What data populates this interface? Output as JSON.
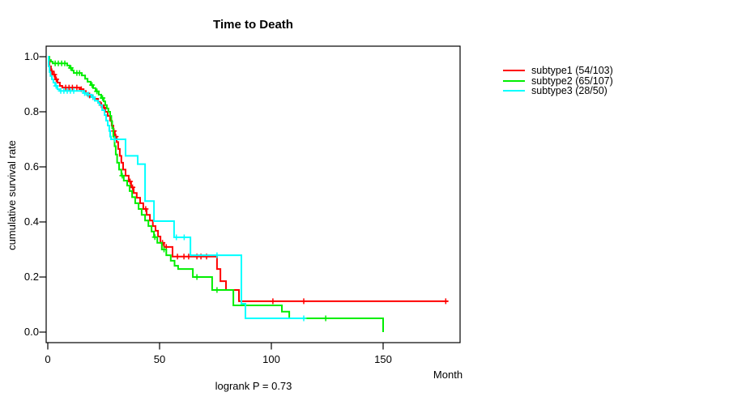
{
  "chart_data": {
    "type": "line",
    "variant": "kaplan-meier-step",
    "title": "Time to Death",
    "xlabel": "Month",
    "ylabel": "cumulative survival rate",
    "annotation": "logrank P = 0.73",
    "xlim": [
      0,
      185
    ],
    "ylim": [
      0.0,
      1.0
    ],
    "grid": false,
    "legend_position": "right-outside",
    "x_tick_values": [
      0,
      50,
      100,
      150
    ],
    "x_tick_labels": [
      "0",
      "50",
      "100",
      "150"
    ],
    "y_tick_values": [
      1.0,
      0.8,
      0.6,
      0.4,
      0.2,
      0.0
    ],
    "y_tick_labels": [
      "1.0",
      "0.8",
      "0.6",
      "0.4",
      "0.2",
      "0.0"
    ],
    "axis_color": "#000000",
    "series": [
      {
        "name": "subtype1",
        "label": "subtype1 (54/103)",
        "events": 54,
        "n": 103,
        "color": "#ff0000",
        "points": [
          [
            0,
            1.0
          ],
          [
            0.7,
            0.965
          ],
          [
            1.4,
            0.947
          ],
          [
            2.2,
            0.935
          ],
          [
            3.3,
            0.918
          ],
          [
            4.3,
            0.906
          ],
          [
            5.4,
            0.894
          ],
          [
            6.5,
            0.888
          ],
          [
            14.5,
            0.882
          ],
          [
            16,
            0.876
          ],
          [
            17,
            0.868
          ],
          [
            18,
            0.859
          ],
          [
            19.5,
            0.853
          ],
          [
            21,
            0.847
          ],
          [
            22.5,
            0.835
          ],
          [
            23.5,
            0.824
          ],
          [
            24.6,
            0.815
          ],
          [
            25.7,
            0.8
          ],
          [
            26.8,
            0.785
          ],
          [
            27.9,
            0.768
          ],
          [
            28.6,
            0.75
          ],
          [
            29.3,
            0.73
          ],
          [
            30,
            0.71
          ],
          [
            30.8,
            0.69
          ],
          [
            31.5,
            0.665
          ],
          [
            32.2,
            0.64
          ],
          [
            32.9,
            0.615
          ],
          [
            33.7,
            0.59
          ],
          [
            34.8,
            0.568
          ],
          [
            36.2,
            0.547
          ],
          [
            37.3,
            0.526
          ],
          [
            38.4,
            0.505
          ],
          [
            39.8,
            0.488
          ],
          [
            41.3,
            0.468
          ],
          [
            42.7,
            0.447
          ],
          [
            44.2,
            0.426
          ],
          [
            45.7,
            0.405
          ],
          [
            47,
            0.385
          ],
          [
            48.2,
            0.368
          ],
          [
            49.3,
            0.347
          ],
          [
            50.4,
            0.324
          ],
          [
            52,
            0.309
          ],
          [
            55.8,
            0.274
          ],
          [
            75.7,
            0.229
          ],
          [
            77.2,
            0.185
          ],
          [
            79.7,
            0.153
          ],
          [
            85.5,
            0.112
          ],
          [
            179,
            0.112
          ]
        ],
        "censors": [
          [
            1.8,
            0.947
          ],
          [
            2.9,
            0.935
          ],
          [
            3.8,
            0.918
          ],
          [
            8,
            0.888
          ],
          [
            9.5,
            0.888
          ],
          [
            11,
            0.888
          ],
          [
            13,
            0.888
          ],
          [
            15,
            0.882
          ],
          [
            18.7,
            0.859
          ],
          [
            20.2,
            0.853
          ],
          [
            24,
            0.824
          ],
          [
            25.2,
            0.815
          ],
          [
            29.6,
            0.73
          ],
          [
            30.4,
            0.71
          ],
          [
            36.8,
            0.547
          ],
          [
            37.9,
            0.526
          ],
          [
            43.8,
            0.447
          ],
          [
            51.3,
            0.324
          ],
          [
            53,
            0.309
          ],
          [
            58,
            0.274
          ],
          [
            60.9,
            0.274
          ],
          [
            63,
            0.274
          ],
          [
            66.7,
            0.274
          ],
          [
            68.5,
            0.274
          ],
          [
            71,
            0.274
          ],
          [
            100.7,
            0.112
          ],
          [
            114.5,
            0.112
          ],
          [
            178,
            0.112
          ]
        ]
      },
      {
        "name": "subtype2",
        "label": "subtype2 (65/107)",
        "events": 65,
        "n": 107,
        "color": "#00ee00",
        "points": [
          [
            0,
            1.0
          ],
          [
            0.7,
            0.988
          ],
          [
            1.4,
            0.982
          ],
          [
            2.2,
            0.976
          ],
          [
            8.7,
            0.968
          ],
          [
            9.8,
            0.959
          ],
          [
            10.9,
            0.95
          ],
          [
            11.6,
            0.941
          ],
          [
            15.2,
            0.932
          ],
          [
            16.7,
            0.92
          ],
          [
            17.8,
            0.909
          ],
          [
            19.2,
            0.897
          ],
          [
            20.3,
            0.886
          ],
          [
            21.4,
            0.874
          ],
          [
            22.8,
            0.862
          ],
          [
            23.9,
            0.85
          ],
          [
            25,
            0.838
          ],
          [
            25.7,
            0.824
          ],
          [
            26.4,
            0.812
          ],
          [
            27.1,
            0.8
          ],
          [
            27.9,
            0.785
          ],
          [
            28.4,
            0.765
          ],
          [
            28.8,
            0.74
          ],
          [
            29.3,
            0.71
          ],
          [
            29.9,
            0.675
          ],
          [
            30.4,
            0.645
          ],
          [
            31,
            0.615
          ],
          [
            31.9,
            0.59
          ],
          [
            32.9,
            0.568
          ],
          [
            34,
            0.55
          ],
          [
            35.5,
            0.532
          ],
          [
            36.6,
            0.512
          ],
          [
            37.7,
            0.49
          ],
          [
            39.1,
            0.468
          ],
          [
            40.6,
            0.447
          ],
          [
            42,
            0.426
          ],
          [
            43.5,
            0.405
          ],
          [
            45,
            0.385
          ],
          [
            46.4,
            0.365
          ],
          [
            47.5,
            0.345
          ],
          [
            49,
            0.324
          ],
          [
            51,
            0.3
          ],
          [
            53,
            0.279
          ],
          [
            55,
            0.259
          ],
          [
            56.7,
            0.241
          ],
          [
            58.3,
            0.229
          ],
          [
            64.9,
            0.2
          ],
          [
            73.5,
            0.153
          ],
          [
            83,
            0.097
          ],
          [
            104.7,
            0.074
          ],
          [
            108,
            0.05
          ],
          [
            150,
            0.0
          ]
        ],
        "censors": [
          [
            3.3,
            0.976
          ],
          [
            4.7,
            0.976
          ],
          [
            6.2,
            0.976
          ],
          [
            7.6,
            0.976
          ],
          [
            10.3,
            0.959
          ],
          [
            13,
            0.941
          ],
          [
            14.2,
            0.941
          ],
          [
            19.8,
            0.897
          ],
          [
            22,
            0.874
          ],
          [
            24.5,
            0.85
          ],
          [
            33.3,
            0.568
          ],
          [
            47.9,
            0.345
          ],
          [
            52,
            0.3
          ],
          [
            66.7,
            0.2
          ],
          [
            75.7,
            0.153
          ],
          [
            124.3,
            0.05
          ]
        ]
      },
      {
        "name": "subtype3",
        "label": "subtype3 (28/50)",
        "events": 28,
        "n": 50,
        "color": "#00ffff",
        "points": [
          [
            0,
            1.0
          ],
          [
            0.4,
            0.965
          ],
          [
            0.8,
            0.944
          ],
          [
            1.2,
            0.93
          ],
          [
            1.8,
            0.918
          ],
          [
            2.5,
            0.906
          ],
          [
            3.3,
            0.894
          ],
          [
            4.3,
            0.882
          ],
          [
            5.4,
            0.876
          ],
          [
            16,
            0.868
          ],
          [
            17.4,
            0.862
          ],
          [
            19.6,
            0.853
          ],
          [
            21,
            0.84
          ],
          [
            22.5,
            0.832
          ],
          [
            23.2,
            0.824
          ],
          [
            24.3,
            0.806
          ],
          [
            25.4,
            0.788
          ],
          [
            26.1,
            0.768
          ],
          [
            26.8,
            0.75
          ],
          [
            27.5,
            0.73
          ],
          [
            27.9,
            0.71
          ],
          [
            28.3,
            0.7
          ],
          [
            34.8,
            0.64
          ],
          [
            40.2,
            0.61
          ],
          [
            43.5,
            0.476
          ],
          [
            47.5,
            0.403
          ],
          [
            56.5,
            0.344
          ],
          [
            63.8,
            0.279
          ],
          [
            86.6,
            0.103
          ],
          [
            88.4,
            0.05
          ],
          [
            115,
            0.05
          ]
        ],
        "censors": [
          [
            3.7,
            0.894
          ],
          [
            5.8,
            0.876
          ],
          [
            7.2,
            0.876
          ],
          [
            8.7,
            0.876
          ],
          [
            10.1,
            0.876
          ],
          [
            11.6,
            0.876
          ],
          [
            16.5,
            0.868
          ],
          [
            18.1,
            0.862
          ],
          [
            20.3,
            0.853
          ],
          [
            30,
            0.7
          ],
          [
            57.5,
            0.344
          ],
          [
            61,
            0.344
          ],
          [
            75.7,
            0.279
          ],
          [
            114.5,
            0.05
          ]
        ]
      }
    ]
  }
}
